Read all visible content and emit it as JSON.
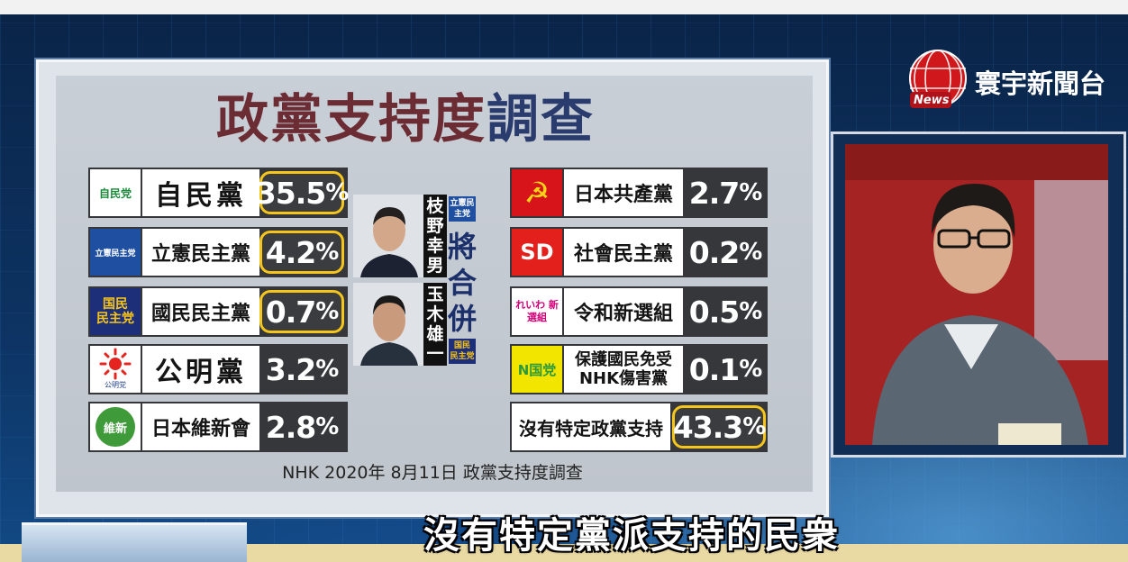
{
  "board": {
    "title_part1": "政黨支持度",
    "title_part2": "調查",
    "note": "NHK 2020年 8月11日 政黨支持度調查"
  },
  "parties_left": [
    {
      "logo_text": "自民党",
      "name": "自民黨",
      "value": "35.5",
      "unit": "%",
      "highlight": true
    },
    {
      "logo_text": "立憲民主党",
      "name": "立憲民主黨",
      "value": "4.2",
      "unit": "%",
      "highlight": true
    },
    {
      "logo_text": "国民 民主党",
      "name": "國民民主黨",
      "value": "0.7",
      "unit": "%",
      "highlight": true
    },
    {
      "logo_text": "公明党",
      "name": "公明黨",
      "value": "3.2",
      "unit": "%",
      "highlight": false
    },
    {
      "logo_text": "維新",
      "name": "日本維新會",
      "value": "2.8",
      "unit": "%",
      "highlight": false
    }
  ],
  "parties_right": [
    {
      "logo_text": "☭",
      "name": "日本共產黨",
      "value": "2.7",
      "unit": "%",
      "highlight": false
    },
    {
      "logo_text": "SD",
      "name": "社會民主黨",
      "value": "0.2",
      "unit": "%",
      "highlight": false
    },
    {
      "logo_text": "れいわ 新選組",
      "name": "令和新選組",
      "value": "0.5",
      "unit": "%",
      "highlight": false
    },
    {
      "logo_text": "N国党",
      "name": "保護國民免受 NHK傷害黨",
      "name_line1": "保護國民免受",
      "name_line2": "NHK傷害黨",
      "value": "0.1",
      "unit": "%",
      "highlight": false
    },
    {
      "name": "沒有特定政黨支持",
      "value": "43.3",
      "unit": "%",
      "highlight": true
    }
  ],
  "merger": {
    "person1": "枝野幸男",
    "person2": "玉木雄一",
    "headline": "將合併",
    "badge_top": "立憲民主党",
    "badge_bottom": "国民 民主党"
  },
  "brand": {
    "name": "寰宇新聞台",
    "logo_word": "News"
  },
  "subtitle": "沒有特定黨派支持的民衆",
  "colors": {
    "title_red": "#6b2c34",
    "title_blue": "#2a3c6e",
    "highlight_border": "#f5c51b",
    "row_bg": "#35373b"
  }
}
